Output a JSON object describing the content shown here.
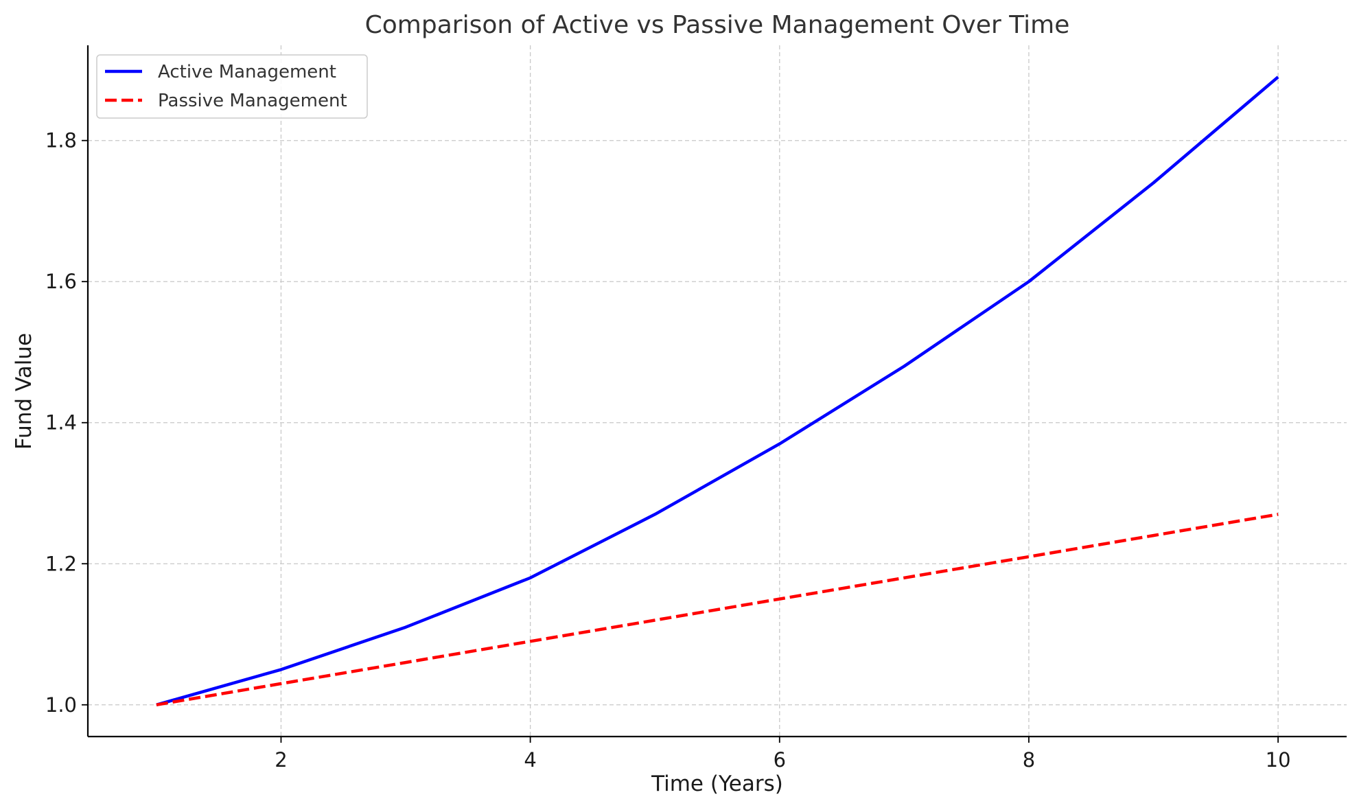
{
  "chart_data": {
    "type": "line",
    "title": "Comparison of Active vs Passive Management Over Time",
    "xlabel": "Time (Years)",
    "ylabel": "Fund Value",
    "x": [
      1,
      2,
      3,
      4,
      5,
      6,
      7,
      8,
      9,
      10
    ],
    "xlim": [
      0.45,
      10.55
    ],
    "ylim": [
      0.955,
      1.935
    ],
    "xticks": [
      2,
      4,
      6,
      8,
      10
    ],
    "yticks": [
      1.0,
      1.2,
      1.4,
      1.6,
      1.8
    ],
    "xtick_labels": [
      "2",
      "4",
      "6",
      "8",
      "10"
    ],
    "ytick_labels": [
      "1.0",
      "1.2",
      "1.4",
      "1.6",
      "1.8"
    ],
    "grid": true,
    "legend_position": "top-left",
    "series": [
      {
        "name": "Active Management",
        "color": "#0000ff",
        "line_style": "solid",
        "values": [
          1.0,
          1.05,
          1.11,
          1.18,
          1.27,
          1.37,
          1.48,
          1.6,
          1.74,
          1.89
        ]
      },
      {
        "name": "Passive Management",
        "color": "#ff0000",
        "line_style": "dashed",
        "values": [
          1.0,
          1.03,
          1.06,
          1.09,
          1.12,
          1.15,
          1.18,
          1.21,
          1.24,
          1.27
        ]
      }
    ]
  }
}
